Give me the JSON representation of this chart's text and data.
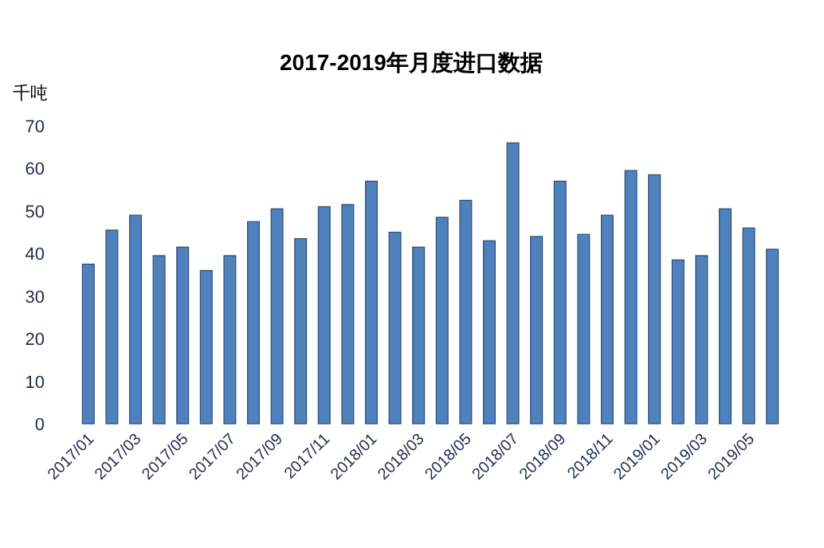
{
  "chart_data": {
    "type": "bar",
    "title": "2017-2019年月度进口数据",
    "ylabel": "千吨",
    "categories": [
      "2017/01",
      null,
      "2017/03",
      null,
      "2017/05",
      null,
      "2017/07",
      null,
      "2017/09",
      null,
      "2017/11",
      null,
      "2018/01",
      null,
      "2018/03",
      null,
      "2018/05",
      null,
      "2018/07",
      null,
      "2018/09",
      null,
      "2018/11",
      null,
      "2019/01",
      null,
      "2019/03",
      null,
      "2019/05",
      null
    ],
    "values": [
      37.5,
      45.5,
      49,
      39.5,
      41.5,
      36,
      39.5,
      47.5,
      50.5,
      43.5,
      51,
      51.5,
      57,
      45,
      41.5,
      48.5,
      52.5,
      43,
      66,
      44,
      57,
      44.5,
      49,
      59.5,
      58.5,
      38.5,
      39.5,
      50.5,
      46,
      41
    ],
    "color": "#4f81bd",
    "ylim": [
      0,
      70
    ],
    "yticks": [
      0,
      10,
      20,
      30,
      40,
      50,
      60,
      70
    ],
    "grid": false
  }
}
